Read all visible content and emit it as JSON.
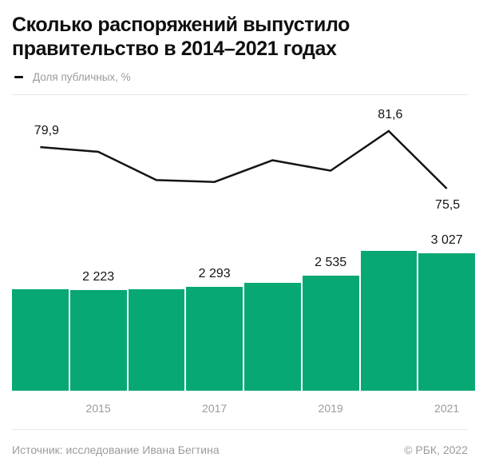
{
  "header": {
    "title": "Сколько распоряжений выпустило правительство в 2014–2021 годах",
    "title_lines": [
      "Сколько распоряжений выпустило",
      "правительство в 2014–2021 годах"
    ]
  },
  "legend": {
    "label": "Доля публичных, %"
  },
  "footer": {
    "source": "Источник: исследование Ивана Бегтина",
    "copyright": "© РБК, 2022"
  },
  "colors": {
    "bar_green": "#08a874",
    "line_black": "#141414",
    "text_dark": "#141414",
    "text_gray": "#9b9b9b",
    "divider_gray": "#e7e7e7"
  },
  "chart_data": [
    {
      "type": "line",
      "name": "Доля публичных, %",
      "x": [
        2014,
        2015,
        2016,
        2017,
        2018,
        2019,
        2020,
        2021
      ],
      "values": [
        79.9,
        79.4,
        76.4,
        76.2,
        78.5,
        77.4,
        81.6,
        75.5
      ],
      "labeled_points": [
        {
          "x": 2014,
          "text": "79,9",
          "position": "above"
        },
        {
          "x": 2020,
          "text": "81,6",
          "position": "above"
        },
        {
          "x": 2021,
          "text": "75,5",
          "position": "below"
        }
      ],
      "grid": false,
      "legend_position": "top-left"
    },
    {
      "type": "bar",
      "categories": [
        2014,
        2015,
        2016,
        2017,
        2018,
        2019,
        2020,
        2021
      ],
      "values": [
        2240,
        2223,
        2240,
        2293,
        2390,
        2535,
        3090,
        3027
      ],
      "value_labels": [
        "",
        "2 223",
        "",
        "2 293",
        "",
        "2 535",
        "",
        "3 027"
      ],
      "tick_labels": [
        "",
        "2015",
        "",
        "2017",
        "",
        "2019",
        "",
        "2021"
      ],
      "ylim": [
        0,
        3150
      ]
    }
  ]
}
